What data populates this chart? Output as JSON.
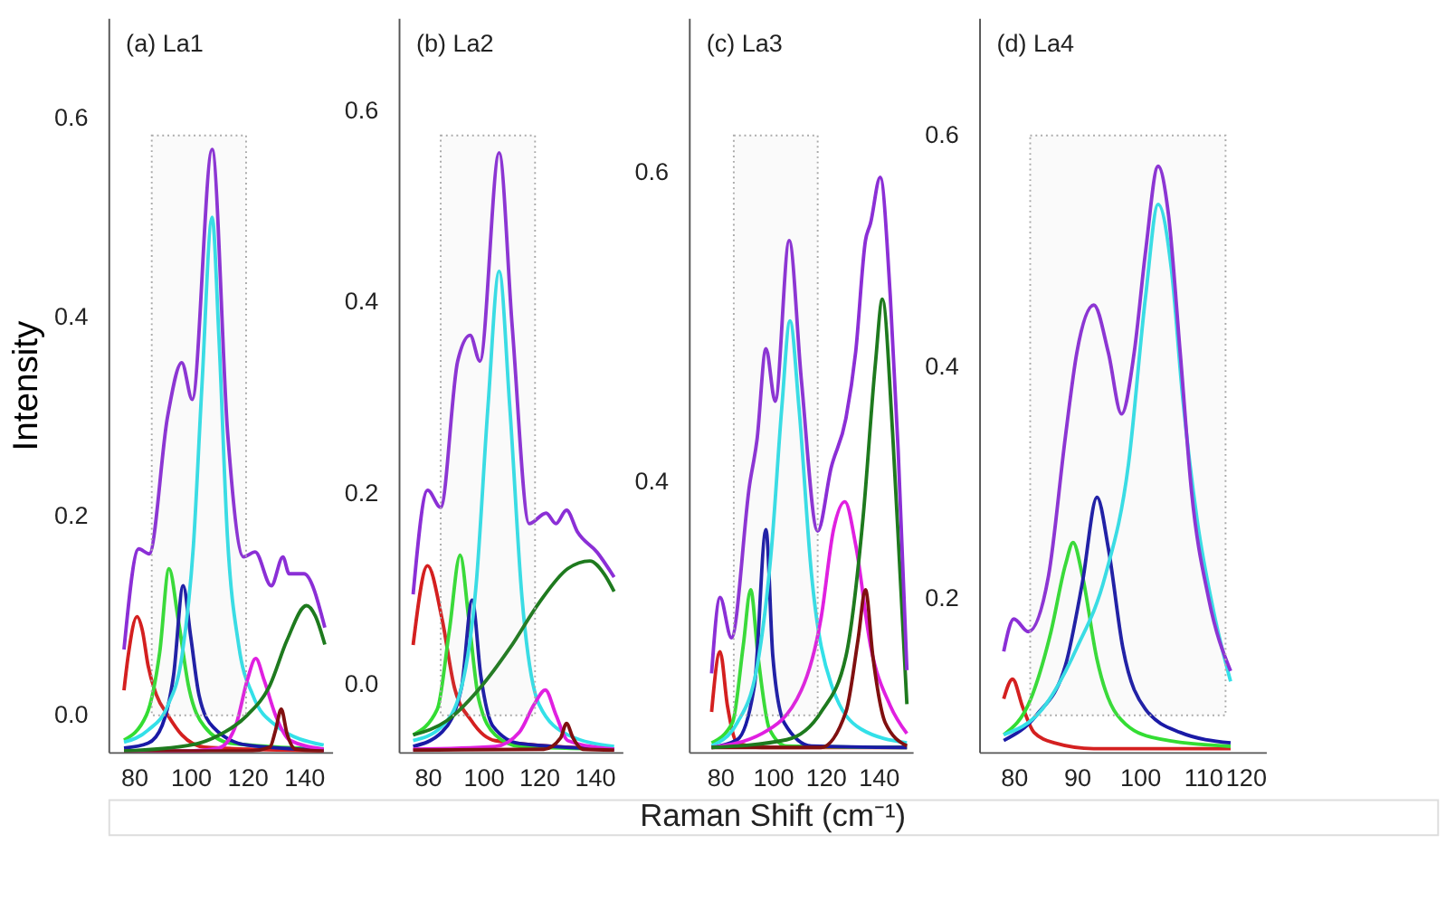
{
  "chart_data": [
    {
      "type": "line",
      "title": "(a) La1",
      "ylabel": "Intensity",
      "grid": false,
      "legend": false,
      "xlim": [
        71,
        150
      ],
      "ylim": [
        -0.037,
        0.7
      ],
      "xticks": [
        80,
        100,
        120,
        140
      ],
      "yticks": [
        {
          "value": 0,
          "label": "0.0"
        },
        {
          "value": 0.2,
          "label": "0.2"
        },
        {
          "value": 0.4,
          "label": "0.4"
        },
        {
          "value": 0.6,
          "label": "0.6"
        }
      ],
      "bands": [
        {
          "axis": "x",
          "from": 86.3,
          "to": 119.6,
          "color": "#aaaaaa"
        }
      ],
      "series": [
        {
          "color": "#d42020",
          "x": [
            76.5,
            78,
            81.1,
            83,
            85,
            88,
            92,
            97,
            105,
            147
          ],
          "values": [
            0.025,
            0.06,
            0.099,
            0.085,
            0.05,
            0.02,
            0.0,
            -0.02,
            -0.032,
            -0.036
          ]
        },
        {
          "color": "#33dd33",
          "x": [
            76.5,
            84.4,
            89.1,
            92.4,
            95.6,
            99.3,
            104.8,
            114,
            147
          ],
          "values": [
            -0.025,
            0.0,
            0.063,
            0.147,
            0.097,
            0.029,
            -0.011,
            -0.028,
            -0.034
          ]
        },
        {
          "color": "#1a1aa6",
          "x": [
            76.5,
            85,
            90,
            94,
            97.4,
            100,
            103,
            108,
            120,
            147
          ],
          "values": [
            -0.033,
            -0.028,
            -0.01,
            0.04,
            0.13,
            0.08,
            0.02,
            -0.012,
            -0.03,
            -0.035
          ]
        },
        {
          "color": "#33e0e8",
          "x": [
            76.5,
            85,
            92,
            97,
            101,
            104,
            107.6,
            110,
            113,
            117,
            122,
            130,
            147
          ],
          "values": [
            -0.027,
            -0.015,
            0.01,
            0.06,
            0.17,
            0.33,
            0.5,
            0.38,
            0.18,
            0.07,
            0.02,
            -0.01,
            -0.03
          ]
        },
        {
          "color": "#e020e0",
          "x": [
            76.5,
            100,
            110,
            116,
            120,
            123,
            126,
            130,
            135,
            147
          ],
          "values": [
            -0.036,
            -0.036,
            -0.033,
            -0.01,
            0.035,
            0.057,
            0.035,
            0.0,
            -0.025,
            -0.034
          ]
        },
        {
          "color": "#801010",
          "x": [
            76.5,
            120,
            128,
            130,
            132,
            134,
            137,
            147
          ],
          "values": [
            -0.036,
            -0.036,
            -0.032,
            -0.015,
            0.006,
            -0.018,
            -0.034,
            -0.036
          ]
        },
        {
          "color": "#1e7a1e",
          "x": [
            76.5,
            100,
            110,
            120,
            128,
            134,
            140.9,
            144,
            147.4
          ],
          "values": [
            -0.036,
            -0.03,
            -0.02,
            0.0,
            0.03,
            0.075,
            0.11,
            0.1,
            0.071
          ]
        },
        {
          "color": "#8b2fd6",
          "x": [
            76.5,
            81.7,
            85.4,
            91.9,
            96.9,
            100.6,
            107.6,
            113.1,
            118.7,
            122.8,
            128.5,
            132.6,
            134.8,
            140,
            147.4
          ],
          "values": [
            0.066,
            0.167,
            0.162,
            0.3,
            0.354,
            0.317,
            0.568,
            0.283,
            0.159,
            0.164,
            0.13,
            0.159,
            0.142,
            0.142,
            0.088
          ]
        }
      ]
    },
    {
      "type": "line",
      "title": "(b) La2",
      "xlabel": "Raman Shift (cm⁻¹)",
      "grid": false,
      "legend": false,
      "xlim": [
        69.6,
        150
      ],
      "ylim": [
        -0.071,
        0.697
      ],
      "xticks": [
        80,
        100,
        120,
        140
      ],
      "yticks": [
        {
          "value": 0,
          "label": "0.0"
        },
        {
          "value": 0.2,
          "label": "0.2"
        },
        {
          "value": 0.4,
          "label": "0.4"
        },
        {
          "value": 0.6,
          "label": "0.6"
        }
      ],
      "bands": [
        {
          "axis": "x",
          "from": 84.7,
          "to": 118.6,
          "color": "#aaaaaa"
        }
      ],
      "series": [
        {
          "color": "#d42020",
          "x": [
            74.8,
            80,
            85.2,
            89.6,
            95.7,
            104.3,
            147
          ],
          "values": [
            0.041,
            0.124,
            0.068,
            -0.003,
            -0.038,
            -0.059,
            -0.068
          ]
        },
        {
          "color": "#33dd33",
          "x": [
            74.8,
            83.5,
            87.8,
            91.7,
            94.8,
            98.3,
            104.3,
            113,
            147
          ],
          "values": [
            -0.053,
            -0.026,
            0.056,
            0.135,
            0.068,
            -0.015,
            -0.053,
            -0.065,
            -0.068
          ]
        },
        {
          "color": "#1a1aa6",
          "x": [
            74.8,
            85.2,
            92.2,
            96,
            99.1,
            103.5,
            113,
            147
          ],
          "values": [
            -0.065,
            -0.05,
            -0.003,
            0.088,
            0.009,
            -0.044,
            -0.062,
            -0.068
          ]
        },
        {
          "color": "#33e0e8",
          "x": [
            74.8,
            85.2,
            92.2,
            97.4,
            101.7,
            105.7,
            109.5,
            113.9,
            120,
            130.4,
            147
          ],
          "values": [
            -0.059,
            -0.044,
            -0.003,
            0.103,
            0.291,
            0.432,
            0.291,
            0.091,
            -0.021,
            -0.053,
            -0.065
          ]
        },
        {
          "color": "#e020e0",
          "x": [
            74.8,
            104.3,
            113,
            118.3,
            122.3,
            126.1,
            130.4,
            147
          ],
          "values": [
            -0.068,
            -0.065,
            -0.05,
            -0.021,
            -0.006,
            -0.032,
            -0.059,
            -0.068
          ]
        },
        {
          "color": "#801010",
          "x": [
            74.8,
            121.7,
            127.8,
            129.9,
            132.2,
            135.7,
            147
          ],
          "values": [
            -0.069,
            -0.068,
            -0.056,
            -0.041,
            -0.056,
            -0.068,
            -0.069
          ]
        },
        {
          "color": "#1e7a1e",
          "x": [
            74.8,
            87,
            99.1,
            109.6,
            120,
            130.4,
            138.3,
            143.5,
            147
          ],
          "values": [
            -0.053,
            -0.038,
            -0.003,
            0.038,
            0.085,
            0.121,
            0.129,
            0.115,
            0.097
          ]
        },
        {
          "color": "#8b2fd6",
          "x": [
            74.8,
            80,
            84.7,
            90.8,
            95.3,
            98.8,
            105.7,
            110.4,
            116.5,
            122.6,
            126.1,
            129.9,
            133.9,
            140.9,
            147
          ],
          "values": [
            0.094,
            0.203,
            0.185,
            0.338,
            0.365,
            0.338,
            0.556,
            0.374,
            0.168,
            0.179,
            0.168,
            0.182,
            0.159,
            0.138,
            0.112
          ]
        }
      ]
    },
    {
      "type": "line",
      "title": "(c) La3",
      "grid": false,
      "legend": false,
      "xlim": [
        68.2,
        153
      ],
      "ylim": [
        0.225,
        0.7
      ],
      "xticks": [
        80,
        100,
        120,
        140
      ],
      "yticks": [
        {
          "value": 0.4,
          "label": "0.4"
        },
        {
          "value": 0.6,
          "label": "0.6"
        }
      ],
      "bands": [
        {
          "axis": "x",
          "from": 85.2,
          "to": 117,
          "color": "#aaaaaa"
        }
      ],
      "series": [
        {
          "color": "#d42020",
          "x": [
            76.8,
            80,
            82.8,
            86.5,
            95.9,
            150.8
          ],
          "values": [
            0.251,
            0.29,
            0.255,
            0.231,
            0.228,
            0.228
          ]
        },
        {
          "color": "#33dd33",
          "x": [
            76.8,
            84.7,
            88.8,
            91.6,
            94.4,
            98.7,
            105.2,
            150.8
          ],
          "values": [
            0.231,
            0.244,
            0.294,
            0.33,
            0.287,
            0.24,
            0.229,
            0.228
          ]
        },
        {
          "color": "#1a1aa6",
          "x": [
            76.8,
            86.5,
            93.1,
            97.4,
            100,
            104.3,
            114.6,
            150.8
          ],
          "values": [
            0.228,
            0.233,
            0.269,
            0.369,
            0.287,
            0.244,
            0.229,
            0.228
          ]
        },
        {
          "color": "#33e0e8",
          "x": [
            76.8,
            86.5,
            94,
            99.6,
            103.4,
            106.5,
            109.9,
            114.6,
            122.1,
            133.3,
            150.8
          ],
          "values": [
            0.229,
            0.244,
            0.28,
            0.359,
            0.448,
            0.504,
            0.448,
            0.341,
            0.269,
            0.24,
            0.231
          ]
        },
        {
          "color": "#e020e0",
          "x": [
            76.8,
            95.9,
            110.8,
            118.3,
            123,
            127.3,
            131.4,
            137,
            144.5,
            150.8
          ],
          "values": [
            0.228,
            0.237,
            0.265,
            0.312,
            0.369,
            0.387,
            0.359,
            0.294,
            0.255,
            0.237
          ]
        },
        {
          "color": "#801010",
          "x": [
            76.8,
            118.3,
            127.7,
            132.3,
            135.1,
            137.9,
            142.6,
            150.8
          ],
          "values": [
            0.228,
            0.228,
            0.251,
            0.298,
            0.33,
            0.287,
            0.244,
            0.229
          ]
        },
        {
          "color": "#1e7a1e",
          "x": [
            76.8,
            105.2,
            118.3,
            127.7,
            134.2,
            138.9,
            141.5,
            145.4,
            148.2,
            150.8
          ],
          "values": [
            0.228,
            0.233,
            0.251,
            0.287,
            0.377,
            0.477,
            0.518,
            0.431,
            0.341,
            0.256
          ]
        },
        {
          "color": "#8b2fd6",
          "x": [
            76.8,
            80,
            84.3,
            91.2,
            94,
            97.4,
            100.9,
            106.2,
            110.8,
            117,
            122.1,
            127.7,
            131.4,
            135.1,
            137,
            140.7,
            144.5,
            147.5,
            150.8
          ],
          "values": [
            0.276,
            0.325,
            0.299,
            0.398,
            0.427,
            0.486,
            0.452,
            0.556,
            0.466,
            0.368,
            0.409,
            0.441,
            0.484,
            0.556,
            0.567,
            0.597,
            0.52,
            0.42,
            0.278
          ]
        }
      ]
    },
    {
      "type": "line",
      "title": "(d) La4",
      "grid": false,
      "legend": false,
      "xlim": [
        74.5,
        120
      ],
      "ylim": [
        0.067,
        0.701
      ],
      "xticks": [
        80,
        90,
        100,
        110,
        120
      ],
      "yticks": [
        {
          "value": 0.2,
          "label": "0.2"
        },
        {
          "value": 0.4,
          "label": "0.4"
        },
        {
          "value": 0.6,
          "label": "0.6"
        }
      ],
      "bands": [
        {
          "axis": "x",
          "from": 82.6,
          "to": 113.6,
          "color": "#aaaaaa"
        }
      ],
      "series": [
        {
          "color": "#d42020",
          "x": [
            78.4,
            79.8,
            81.4,
            83.2,
            86.4,
            92.7,
            114.4
          ],
          "values": [
            0.113,
            0.13,
            0.106,
            0.084,
            0.075,
            0.07,
            0.07
          ]
        },
        {
          "color": "#33dd33",
          "x": [
            78.4,
            82.7,
            85.9,
            88.2,
            89.4,
            90.9,
            93.2,
            96.4,
            101.8,
            114.4
          ],
          "values": [
            0.082,
            0.113,
            0.171,
            0.229,
            0.248,
            0.219,
            0.147,
            0.099,
            0.08,
            0.072
          ]
        },
        {
          "color": "#1a1aa6",
          "x": [
            78.4,
            83.6,
            88.2,
            90.9,
            93.2,
            95,
            97.3,
            100.9,
            106.4,
            114.4
          ],
          "values": [
            0.077,
            0.099,
            0.142,
            0.214,
            0.287,
            0.243,
            0.157,
            0.104,
            0.084,
            0.075
          ]
        },
        {
          "color": "#33e0e8",
          "x": [
            78.4,
            84.5,
            90,
            94.5,
            98.2,
            100.9,
            102.9,
            105,
            106.8,
            109.1,
            111.8,
            114.4
          ],
          "values": [
            0.082,
            0.104,
            0.157,
            0.219,
            0.316,
            0.46,
            0.54,
            0.484,
            0.373,
            0.267,
            0.186,
            0.128
          ]
        },
        {
          "color": "#8b2fd6",
          "x": [
            78.4,
            80,
            82.3,
            85.5,
            88.2,
            90,
            92.7,
            95,
            97.1,
            99.1,
            100.9,
            102.9,
            104.5,
            106.4,
            108.2,
            110.9,
            114.4
          ],
          "values": [
            0.154,
            0.182,
            0.171,
            0.219,
            0.34,
            0.412,
            0.453,
            0.412,
            0.359,
            0.412,
            0.499,
            0.573,
            0.533,
            0.412,
            0.292,
            0.2,
            0.137
          ]
        }
      ]
    }
  ]
}
